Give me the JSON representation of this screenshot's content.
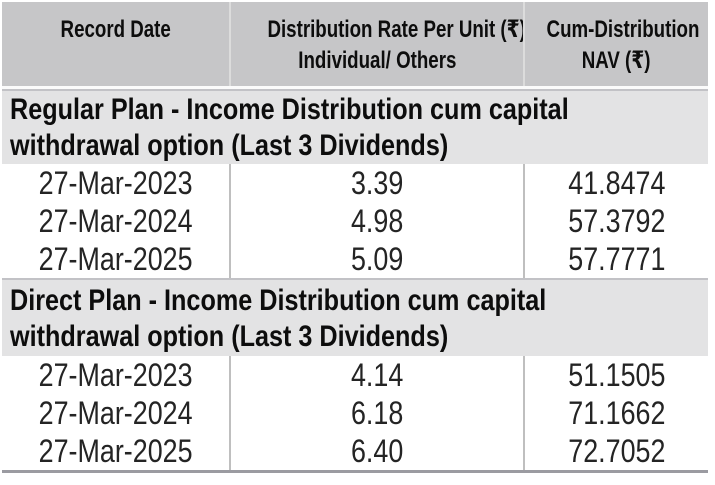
{
  "colors": {
    "header-bg": "#c6c6c8",
    "header-text": "#0d0d0d",
    "header-divider": "#dcdcdc",
    "section-bg": "#e3e3e4",
    "section-border": "#c2c2c6",
    "row-bg": "#ffffff",
    "row-divider": "#bfbfbf",
    "text": "#242424",
    "gap": "#fbfbfb",
    "bottom-border": "#9b9ba1"
  },
  "table": {
    "header": {
      "record_date": "Record Date",
      "col2_lines": [
        "Distribution Rate Per Unit  (₹)",
        "Individual/ Others"
      ],
      "col3_lines": [
        "Cum-Distribution",
        "NAV (₹)"
      ]
    },
    "sections": [
      {
        "id": "regular",
        "title_lines": [
          "Regular Plan - Income Distribution cum capital",
          "withdrawal option (Last 3 Dividends)"
        ],
        "rows": [
          {
            "record_date": "27-Mar-2023",
            "rate": "3.39",
            "nav": "41.8474"
          },
          {
            "record_date": "27-Mar-2024",
            "rate": "4.98",
            "nav": "57.3792"
          },
          {
            "record_date": "27-Mar-2025",
            "rate": "5.09",
            "nav": "57.7771"
          }
        ]
      },
      {
        "id": "direct",
        "title_lines": [
          "Direct Plan - Income Distribution cum capital",
          "withdrawal option (Last 3 Dividends)"
        ],
        "rows": [
          {
            "record_date": "27-Mar-2023",
            "rate": "4.14",
            "nav": "51.1505"
          },
          {
            "record_date": "27-Mar-2024",
            "rate": "6.18",
            "nav": "71.1662"
          },
          {
            "record_date": "27-Mar-2025",
            "rate": "6.40",
            "nav": "72.7052"
          }
        ]
      }
    ]
  }
}
